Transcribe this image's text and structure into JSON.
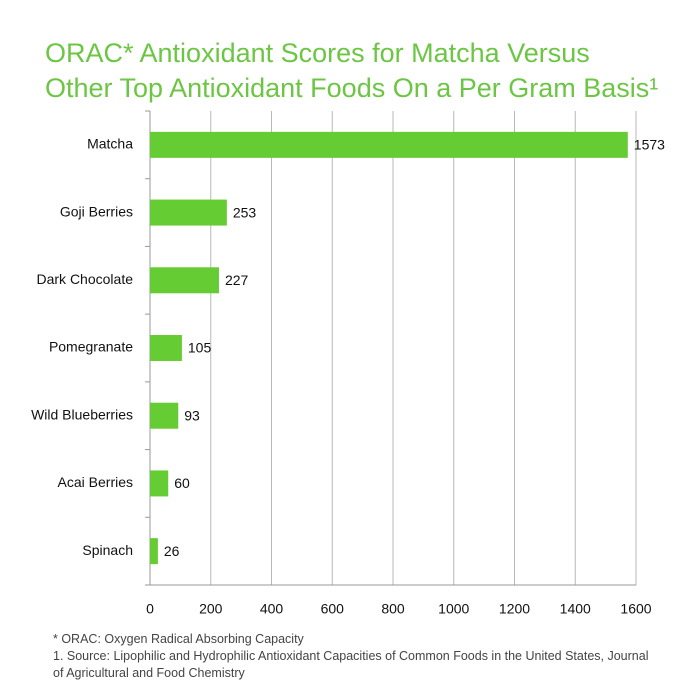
{
  "chart_data": {
    "type": "bar",
    "orientation": "horizontal",
    "title_lines": [
      "ORAC* Antioxidant Scores for Matcha Versus",
      "Other Top Antioxidant Foods On a Per Gram Basis¹"
    ],
    "categories": [
      "Matcha",
      "Goji Berries",
      "Dark Chocolate",
      "Pomegranate",
      "Wild Blueberries",
      "Acai Berries",
      "Spinach"
    ],
    "values": [
      1573,
      253,
      227,
      105,
      93,
      60,
      26
    ],
    "color": "#66cc33",
    "xlim": [
      0,
      1600
    ],
    "xticks": [
      0,
      200,
      400,
      600,
      800,
      1000,
      1200,
      1400,
      1600
    ],
    "grid": true,
    "notes": [
      "* ORAC: Oxygen Radical Absorbing Capacity",
      "1. Source: Lipophilic and Hydrophilic Antioxidant Capacities of Common Foods in the United States, Journal of Agricultural and Food Chemistry"
    ]
  }
}
